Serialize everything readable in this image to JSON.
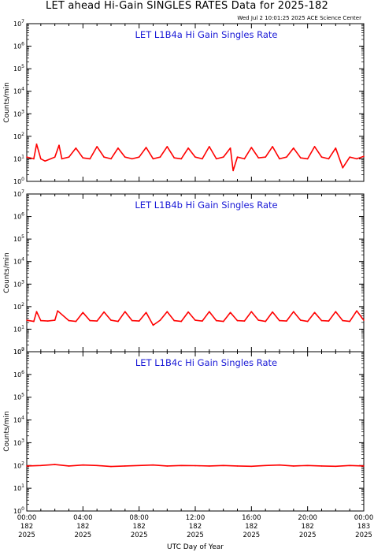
{
  "title": "LET ahead Hi-Gain SINGLES RATES Data for 2025-182",
  "timestamp": "Wed Jul  2 10:01:25 2025 ACE Science Center",
  "colors": {
    "series": "#ff0000",
    "panel_title": "#1a1ad6",
    "axes": "#000000"
  },
  "chart_data": [
    {
      "type": "line",
      "title": "LET L1B4a Hi Gain Singles Rate",
      "ylabel": "Counts/min",
      "yscale": "log",
      "ylim": [
        1,
        10000000
      ],
      "ytick_exponents": [
        0,
        1,
        2,
        3,
        4,
        5,
        6,
        7
      ],
      "xlim": [
        0,
        24
      ],
      "x": [
        0,
        0.5,
        0.7,
        1,
        1.3,
        2,
        2.3,
        2.5,
        3,
        3.5,
        4,
        4.5,
        5,
        5.5,
        6,
        6.5,
        7,
        7.5,
        8,
        8.5,
        9,
        9.5,
        10,
        10.5,
        11,
        11.5,
        12,
        12.5,
        13,
        13.5,
        14,
        14.5,
        14.7,
        15,
        15.5,
        16,
        16.5,
        17,
        17.5,
        18,
        18.5,
        19,
        19.5,
        20,
        20.5,
        21,
        21.5,
        22,
        22.5,
        23,
        23.5,
        24
      ],
      "values": [
        12,
        10,
        45,
        10,
        8,
        12,
        40,
        10,
        12,
        30,
        11,
        10,
        35,
        12,
        10,
        30,
        12,
        10,
        12,
        32,
        10,
        12,
        35,
        11,
        10,
        30,
        12,
        10,
        35,
        10,
        12,
        30,
        3,
        12,
        10,
        32,
        11,
        12,
        35,
        10,
        12,
        30,
        11,
        10,
        35,
        12,
        10,
        30,
        4,
        12,
        10,
        13
      ]
    },
    {
      "type": "line",
      "title": "LET L1B4b Hi Gain Singles Rate",
      "ylabel": "Counts/min",
      "yscale": "log",
      "ylim": [
        1,
        10000000
      ],
      "ytick_exponents": [
        0,
        1,
        2,
        3,
        4,
        5,
        6,
        7
      ],
      "xlim": [
        0,
        24
      ],
      "x": [
        0,
        0.5,
        0.7,
        1,
        1.5,
        2,
        2.2,
        3,
        3.5,
        4,
        4.5,
        5,
        5.5,
        6,
        6.5,
        7,
        7.5,
        8,
        8.5,
        9,
        9.5,
        10,
        10.5,
        11,
        11.5,
        12,
        12.5,
        13,
        13.5,
        14,
        14.5,
        15,
        15.5,
        16,
        16.5,
        17,
        17.5,
        18,
        18.5,
        19,
        19.5,
        20,
        20.5,
        21,
        21.5,
        22,
        22.5,
        23,
        23.5,
        24
      ],
      "values": [
        25,
        22,
        60,
        24,
        23,
        25,
        65,
        24,
        22,
        55,
        24,
        23,
        58,
        25,
        22,
        60,
        24,
        23,
        55,
        15,
        25,
        60,
        24,
        22,
        58,
        25,
        23,
        60,
        24,
        22,
        55,
        24,
        23,
        60,
        25,
        22,
        58,
        24,
        23,
        60,
        25,
        22,
        55,
        24,
        23,
        60,
        24,
        22,
        65,
        25
      ]
    },
    {
      "type": "line",
      "title": "LET L1B4c Hi Gain Singles Rate",
      "ylabel": "Counts/min",
      "yscale": "log",
      "ylim": [
        1,
        10000000
      ],
      "ytick_exponents": [
        0,
        1,
        2,
        3,
        4,
        5,
        6,
        7
      ],
      "xlim": [
        0,
        24
      ],
      "x": [
        0,
        1,
        2,
        3,
        4,
        5,
        6,
        7,
        8,
        9,
        10,
        11,
        12,
        13,
        14,
        15,
        16,
        17,
        18,
        19,
        20,
        21,
        22,
        23,
        24
      ],
      "values": [
        95,
        100,
        110,
        95,
        105,
        100,
        90,
        95,
        100,
        105,
        95,
        100,
        98,
        95,
        100,
        95,
        92,
        100,
        105,
        95,
        100,
        95,
        92,
        100,
        95
      ]
    }
  ],
  "x_ticks": [
    {
      "time": "00:00",
      "day": "182",
      "year": "2025"
    },
    {
      "time": "04:00",
      "day": "182",
      "year": "2025"
    },
    {
      "time": "08:00",
      "day": "182",
      "year": "2025"
    },
    {
      "time": "12:00",
      "day": "182",
      "year": "2025"
    },
    {
      "time": "16:00",
      "day": "182",
      "year": "2025"
    },
    {
      "time": "20:00",
      "day": "182",
      "year": "2025"
    },
    {
      "time": "00:00",
      "day": "183",
      "year": "2025"
    }
  ],
  "xlabel": "UTC Day of Year"
}
